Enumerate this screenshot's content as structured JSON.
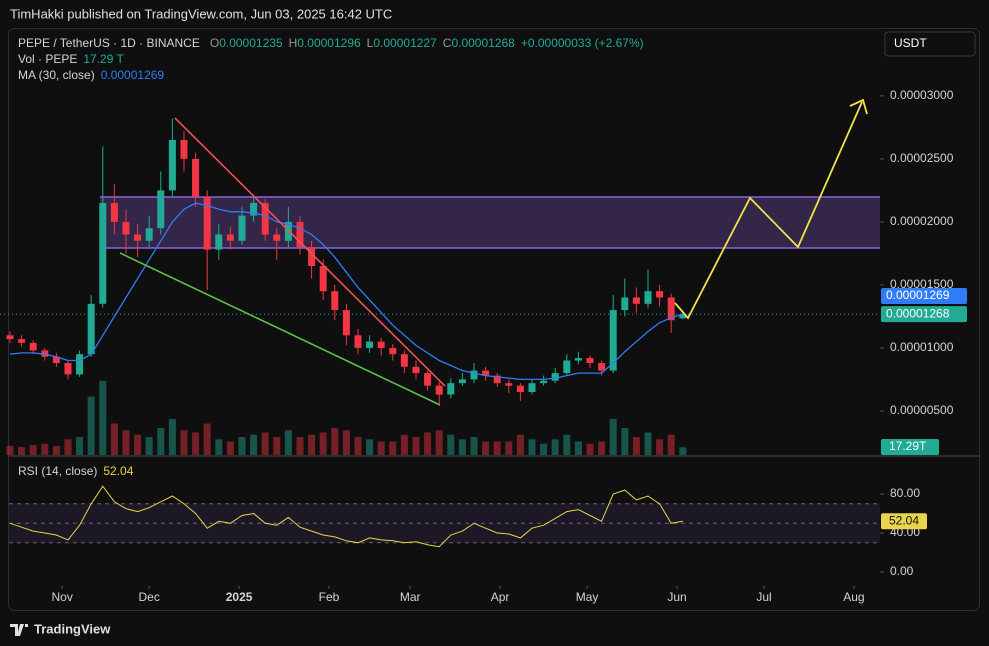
{
  "header": {
    "publisher": "TimHakki published on TradingView.com, Jun 03, 2025 16:42 UTC",
    "currency": "USDT",
    "footer": "TradingView"
  },
  "chart_data": [
    {
      "type": "candlestick",
      "symbol": "PEPE / TetherUS · 1D · BINANCE",
      "ohlc_labels": [
        {
          "key": "O",
          "text": "0.00001235"
        },
        {
          "key": "H",
          "text": "0.00001296"
        },
        {
          "key": "L",
          "text": "0.00001227"
        },
        {
          "key": "C",
          "text": "0.00001268"
        }
      ],
      "change": "+0.00000033 (+2.67%)",
      "volume_name": "Vol · PEPE",
      "volume_legend": "17.29 T",
      "volume_label": "17.29T",
      "ma_name": "MA (30, close)",
      "ma_legend": "0.00001269",
      "price_tag": "0.00001268",
      "ma_tag": "0.00001269",
      "open": [
        1.1e-05,
        1.07e-05,
        1.04e-05,
        9.8e-06,
        9.3e-06,
        8.8e-06,
        7.9e-06,
        9.5e-06,
        1.35e-05,
        2.15e-05,
        2e-05,
        1.9e-05,
        1.85e-05,
        1.95e-05,
        2.25e-05,
        2.65e-05,
        2.5e-05,
        2.2e-05,
        1.78e-05,
        1.9e-05,
        1.85e-05,
        2.05e-05,
        2.15e-05,
        1.9e-05,
        1.85e-05,
        2e-05,
        1.8e-05,
        1.65e-05,
        1.45e-05,
        1.3e-05,
        1.1e-05,
        1e-05,
        1.05e-05,
        1e-05,
        9.5e-06,
        8.5e-06,
        8e-06,
        7e-06,
        6.3e-06,
        7.2e-06,
        7.5e-06,
        8.2e-06,
        7.8e-06,
        7.2e-06,
        7e-06,
        6.5e-06,
        7.2e-06,
        7.4e-06,
        8e-06,
        9e-06,
        9.2e-06,
        8.8e-06,
        8.2e-06,
        1.3e-05,
        1.4e-05,
        1.35e-05,
        1.45e-05,
        1.4e-05,
        1.235e-05
      ],
      "high": [
        1.13e-05,
        1.1e-05,
        1.06e-05,
        1e-05,
        9.6e-06,
        9e-06,
        9.8e-06,
        1.42e-05,
        2.6e-05,
        2.3e-05,
        2.1e-05,
        1.98e-05,
        2.05e-05,
        2.4e-05,
        2.82e-05,
        2.72e-05,
        2.55e-05,
        2.25e-05,
        1.98e-05,
        1.96e-05,
        2.12e-05,
        2.2e-05,
        2.18e-05,
        1.95e-05,
        2.12e-05,
        2.05e-05,
        1.85e-05,
        1.7e-05,
        1.5e-05,
        1.35e-05,
        1.15e-05,
        1.1e-05,
        1.08e-05,
        1.03e-05,
        9.8e-06,
        9e-06,
        8.2e-06,
        7.3e-06,
        7.6e-06,
        8e-06,
        8.8e-06,
        8.5e-06,
        8e-06,
        7.5e-06,
        7.2e-06,
        7.5e-06,
        7.8e-06,
        8.4e-06,
        9.5e-06,
        9.7e-06,
        9.4e-06,
        9e-06,
        1.42e-05,
        1.55e-05,
        1.48e-05,
        1.62e-05,
        1.5e-05,
        1.43e-05,
        1.296e-05
      ],
      "low": [
        1.04e-05,
        1.01e-05,
        9.5e-06,
        9e-06,
        8.5e-06,
        7.5e-06,
        7.7e-06,
        9.3e-06,
        1.32e-05,
        1.9e-05,
        1.75e-05,
        1.72e-05,
        1.8e-05,
        1.9e-05,
        2.2e-05,
        2.4e-05,
        2.12e-05,
        1.46e-05,
        1.7e-05,
        1.78e-05,
        1.82e-05,
        2e-05,
        1.85e-05,
        1.7e-05,
        1.8e-05,
        1.74e-05,
        1.55e-05,
        1.38e-05,
        1.22e-05,
        1.02e-05,
        9.5e-06,
        9.6e-06,
        9.4e-06,
        9e-06,
        8e-06,
        7.5e-06,
        6.6e-06,
        5.5e-06,
        6e-06,
        7e-06,
        7.2e-06,
        7.4e-06,
        6.9e-06,
        6.4e-06,
        5.8e-06,
        6.3e-06,
        7e-06,
        7.2e-06,
        7.8e-06,
        8.7e-06,
        8.4e-06,
        7.8e-06,
        8e-06,
        1.25e-05,
        1.28e-05,
        1.32e-05,
        1.33e-05,
        1.12e-05,
        1.227e-05
      ],
      "close": [
        1.07e-05,
        1.04e-05,
        9.8e-06,
        9.3e-06,
        8.8e-06,
        7.9e-06,
        9.5e-06,
        1.35e-05,
        2.15e-05,
        2e-05,
        1.9e-05,
        1.85e-05,
        1.95e-05,
        2.25e-05,
        2.65e-05,
        2.5e-05,
        2.2e-05,
        1.78e-05,
        1.9e-05,
        1.85e-05,
        2.05e-05,
        2.15e-05,
        1.9e-05,
        1.85e-05,
        2e-05,
        1.8e-05,
        1.65e-05,
        1.45e-05,
        1.3e-05,
        1.1e-05,
        1e-05,
        1.05e-05,
        1e-05,
        9.5e-06,
        8.5e-06,
        8e-06,
        7e-06,
        6.3e-06,
        7.2e-06,
        7.5e-06,
        8.2e-06,
        7.8e-06,
        7.2e-06,
        7e-06,
        6.5e-06,
        7.2e-06,
        7.4e-06,
        8e-06,
        9e-06,
        9.2e-06,
        8.8e-06,
        8.2e-06,
        1.3e-05,
        1.4e-05,
        1.35e-05,
        1.45e-05,
        1.4e-05,
        1.22e-05,
        1.268e-05
      ],
      "volume": [
        20,
        18,
        22,
        25,
        20,
        35,
        40,
        130,
        165,
        70,
        55,
        45,
        40,
        60,
        80,
        55,
        50,
        70,
        35,
        30,
        40,
        45,
        50,
        40,
        55,
        40,
        45,
        50,
        60,
        55,
        40,
        35,
        30,
        30,
        45,
        40,
        50,
        55,
        45,
        35,
        40,
        30,
        30,
        30,
        45,
        35,
        25,
        35,
        45,
        30,
        25,
        30,
        80,
        60,
        40,
        50,
        35,
        45,
        17.29
      ],
      "ma": [
        9.5e-06,
        9.6e-06,
        9.6e-06,
        9.5e-06,
        9.3e-06,
        9e-06,
        9e-06,
        9.5e-06,
        1.1e-05,
        1.25e-05,
        1.4e-05,
        1.55e-05,
        1.7e-05,
        1.85e-05,
        2e-05,
        2.1e-05,
        2.15e-05,
        2.13e-05,
        2.1e-05,
        2.08e-05,
        2.08e-05,
        2.07e-05,
        2.05e-05,
        2e-05,
        1.98e-05,
        1.95e-05,
        1.9e-05,
        1.82e-05,
        1.72e-05,
        1.6e-05,
        1.48e-05,
        1.38e-05,
        1.28e-05,
        1.18e-05,
        1.1e-05,
        1.02e-05,
        9.6e-06,
        9e-06,
        8.6e-06,
        8.2e-06,
        8e-06,
        7.8e-06,
        7.7e-06,
        7.6e-06,
        7.5e-06,
        7.5e-06,
        7.5e-06,
        7.6e-06,
        7.8e-06,
        8e-06,
        8e-06,
        8e-06,
        8.8e-06,
        9.7e-06,
        1.05e-05,
        1.13e-05,
        1.2e-05,
        1.24e-05,
        1.269e-05
      ],
      "ylim": [
        1.5e-06,
        3.523e-05
      ],
      "yticks": [
        {
          "value": 5e-06,
          "label": "0.00000500"
        },
        {
          "value": 1e-05,
          "label": "0.00001000"
        },
        {
          "value": 1.5e-05,
          "label": "0.00001500"
        },
        {
          "value": 2e-05,
          "label": "0.00002000"
        },
        {
          "value": 2.5e-05,
          "label": "0.00002500"
        },
        {
          "value": 3e-05,
          "label": "0.00003000"
        }
      ],
      "xlim": [
        -0.86,
        75
      ],
      "xticks": [
        {
          "value": 4.5,
          "label": "Nov"
        },
        {
          "value": 12,
          "label": "Dec"
        },
        {
          "value": 19.75,
          "label": "2025"
        },
        {
          "value": 27.5,
          "label": "Feb"
        },
        {
          "value": 34.5,
          "label": "Mar"
        },
        {
          "value": 42.25,
          "label": "Apr"
        },
        {
          "value": 49.75,
          "label": "May"
        },
        {
          "value": 57.5,
          "label": "Jun"
        },
        {
          "value": 65,
          "label": "Jul"
        },
        {
          "value": 72.75,
          "label": "Aug"
        }
      ],
      "up_color": "#22ab94",
      "down_color": "#f23645",
      "ma_color": "#2f7cf6"
    },
    {
      "type": "line",
      "title": "RSI (14, close)",
      "values": [
        50,
        46,
        42,
        40,
        38,
        33,
        48,
        70,
        88,
        72,
        65,
        62,
        66,
        72,
        78,
        70,
        60,
        45,
        52,
        50,
        58,
        60,
        50,
        48,
        56,
        46,
        42,
        38,
        36,
        32,
        30,
        35,
        33,
        32,
        30,
        31,
        28,
        26,
        38,
        42,
        50,
        45,
        40,
        39,
        35,
        45,
        48,
        55,
        62,
        64,
        58,
        52,
        80,
        84,
        74,
        78,
        70,
        50,
        52.04
      ],
      "ylim": [
        -13.3,
        114.9
      ],
      "yticks": [
        {
          "value": 0,
          "label": "0.00"
        },
        {
          "value": 40,
          "label": "40.00"
        },
        {
          "value": 80,
          "label": "80.00"
        }
      ],
      "bands": [
        70,
        50,
        30
      ],
      "color": "#e8d44d"
    }
  ]
}
